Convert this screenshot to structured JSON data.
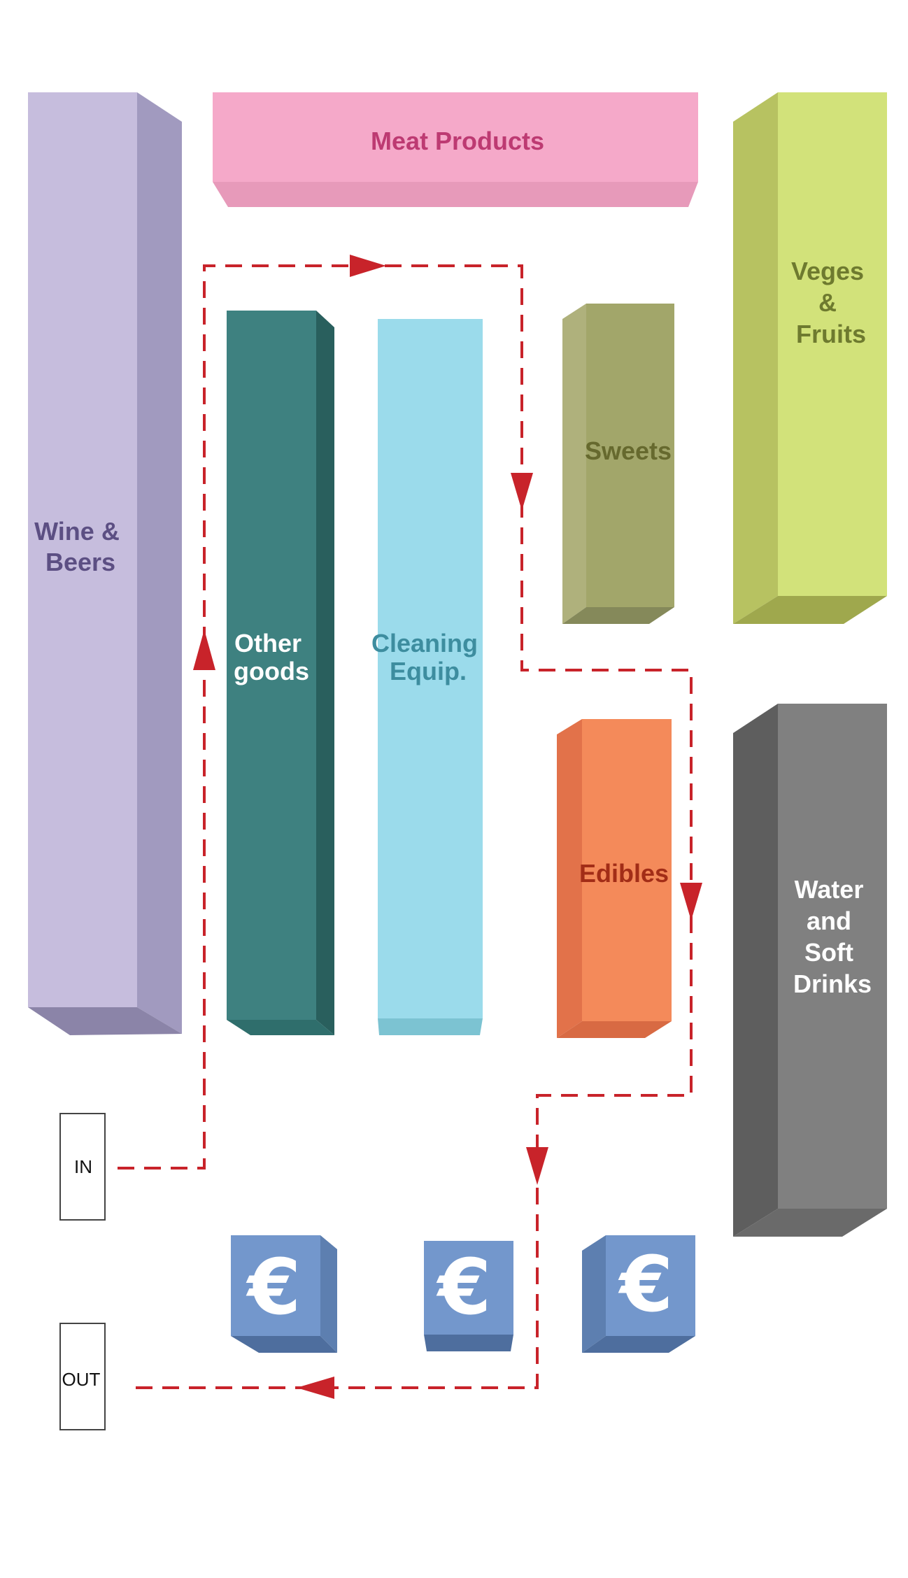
{
  "colors": {
    "wine": "#c6bddd",
    "meat": "#f5a9c9",
    "veges": "#d2e27a",
    "other": "#3e8180",
    "cleaning": "#9bdbeb",
    "sweets": "#a2a66a",
    "edibles": "#f48a5a",
    "water": "#808080",
    "checkout": "#7397cc",
    "path": "#c8232a"
  },
  "sections": {
    "wine": {
      "line1": "Wine &",
      "line2": "Beers"
    },
    "meat": {
      "label": "Meat Products"
    },
    "veges": {
      "line1": "Veges",
      "line2": "&",
      "line3": "Fruits"
    },
    "other": {
      "line1": "Other",
      "line2": "goods"
    },
    "cleaning": {
      "line1": "Cleaning",
      "line2": "Equip."
    },
    "sweets": {
      "label": "Sweets"
    },
    "edibles": {
      "label": "Edibles"
    },
    "water": {
      "line1": "Water",
      "line2": "and",
      "line3": "Soft",
      "line4": "Drinks"
    }
  },
  "checkouts": [
    {
      "symbol": "€"
    },
    {
      "symbol": "€"
    },
    {
      "symbol": "€"
    }
  ],
  "entrance": {
    "label": "IN"
  },
  "exit": {
    "label": "OUT"
  }
}
